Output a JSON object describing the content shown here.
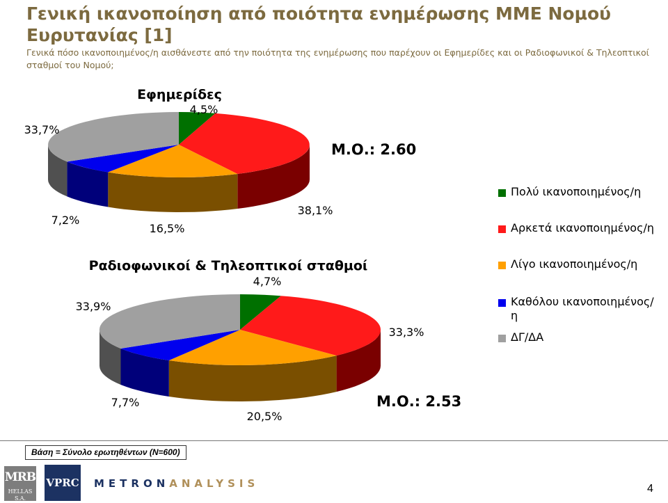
{
  "header": {
    "title": "Γενική ικανοποίηση από ποιότητα ενημέρωσης ΜΜΕ Νομού Ευρυτανίας [1]",
    "subtitle": "Γενικά πόσο ικανοποιημένος/η αισθάνεστε από την ποιότητα της ενημέρωσης που παρέχουν οι Εφημερίδες και οι Ραδιοφωνικοί & Τηλεοπτικοί σταθμοί του Νομού;"
  },
  "legend": {
    "items": [
      {
        "label": "Πολύ ικανοποιημένος/η",
        "color": "#007000"
      },
      {
        "label": "Αρκετά ικανοποιημένος/η",
        "color": "#ff1a1a"
      },
      {
        "label": "Λίγο ικανοποιημένος/η",
        "color": "#ffa000"
      },
      {
        "label": "Καθόλου ικανοποιημένος/η",
        "color": "#0000ee"
      },
      {
        "label": "ΔΓ/ΔΑ",
        "color": "#a0a0a0"
      }
    ]
  },
  "chart_data": [
    {
      "type": "pie",
      "title": "Εφημερίδες",
      "categories": [
        "Πολύ ικανοποιημένος/η",
        "Αρκετά ικανοποιημένος/η",
        "Λίγο ικανοποιημένος/η",
        "Καθόλου ικανοποιημένος/η",
        "ΔΓ/ΔΑ"
      ],
      "values": [
        4.5,
        38.1,
        16.5,
        7.2,
        33.7
      ],
      "data_labels": [
        "4,5%",
        "38,1%",
        "16,5%",
        "7,2%",
        "33,7%"
      ],
      "annotation": "Μ.Ο.: 2.60"
    },
    {
      "type": "pie",
      "title": "Ραδιοφωνικοί & Τηλεοπτικοί σταθμοί",
      "categories": [
        "Πολύ ικανοποιημένος/η",
        "Αρκετά ικανοποιημένος/η",
        "Λίγο ικανοποιημένος/η",
        "Καθόλου ικανοποιημένος/η",
        "ΔΓ/ΔΑ"
      ],
      "values": [
        4.7,
        33.3,
        20.5,
        7.7,
        33.9
      ],
      "data_labels": [
        "4,7%",
        "33,3%",
        "20,5%",
        "7,7%",
        "33,9%"
      ],
      "annotation": "Μ.Ο.: 2.53"
    }
  ],
  "footer": {
    "base_note": "Βάση = Σύνολο ερωτηθέντων (N=600)",
    "logo_mrb": "MRB",
    "logo_mrb_sub": "HELLAS S.A.",
    "logo_vprc": "VPRC",
    "logo_metron_a": "METRON",
    "logo_metron_b": "ANALYSIS",
    "page_number": "4"
  }
}
